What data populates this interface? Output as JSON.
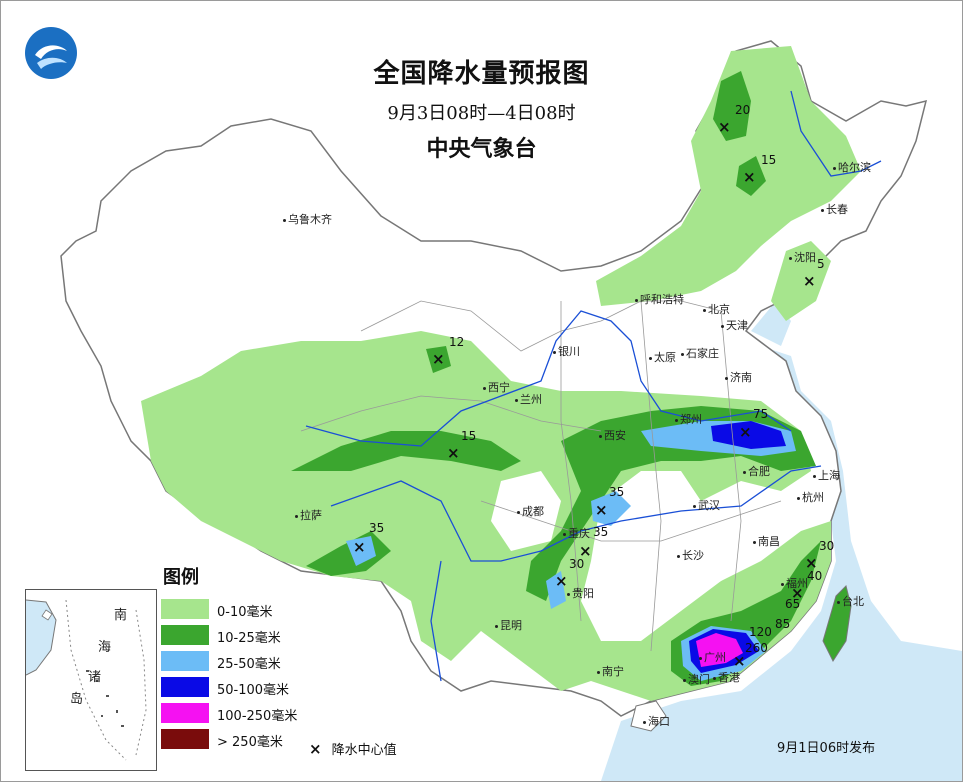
{
  "header": {
    "title": "全国降水量预报图",
    "period": "9月3日08时—4日08时",
    "issuer": "中央气象台"
  },
  "logo_icon": "cma-logo-icon",
  "cities": [
    {
      "name": "乌鲁木齐",
      "label": "乌鲁木齐"
    },
    {
      "name": "哈尔滨",
      "label": "哈尔滨"
    },
    {
      "name": "长春",
      "label": "长春"
    },
    {
      "name": "沈阳",
      "label": "沈阳"
    },
    {
      "name": "呼和浩特",
      "label": "呼和浩特"
    },
    {
      "name": "北京",
      "label": "北京"
    },
    {
      "name": "天津",
      "label": "天津"
    },
    {
      "name": "石家庄",
      "label": "石家庄"
    },
    {
      "name": "太原",
      "label": "太原"
    },
    {
      "name": "银川",
      "label": "银川"
    },
    {
      "name": "济南",
      "label": "济南"
    },
    {
      "name": "西宁",
      "label": "西宁"
    },
    {
      "name": "兰州",
      "label": "兰州"
    },
    {
      "name": "西安",
      "label": "西安"
    },
    {
      "name": "郑州",
      "label": "郑州"
    },
    {
      "name": "合肥",
      "label": "合肥"
    },
    {
      "name": "上海",
      "label": "上海"
    },
    {
      "name": "杭州",
      "label": "杭州"
    },
    {
      "name": "武汉",
      "label": "武汉"
    },
    {
      "name": "南昌",
      "label": "南昌"
    },
    {
      "name": "长沙",
      "label": "长沙"
    },
    {
      "name": "成都",
      "label": "成都"
    },
    {
      "name": "重庆",
      "label": "重庆"
    },
    {
      "name": "贵阳",
      "label": "贵阳"
    },
    {
      "name": "昆明",
      "label": "昆明"
    },
    {
      "name": "拉萨",
      "label": "拉萨"
    },
    {
      "name": "福州",
      "label": "福州"
    },
    {
      "name": "台北",
      "label": "台北"
    },
    {
      "name": "南宁",
      "label": "南宁"
    },
    {
      "name": "广州",
      "label": "广州"
    },
    {
      "name": "香港",
      "label": "香港"
    },
    {
      "name": "澳门",
      "label": "澳门"
    },
    {
      "name": "海口",
      "label": "海口"
    }
  ],
  "precip_centers": [
    "20",
    "15",
    "5",
    "12",
    "15",
    "75",
    "35",
    "35",
    "35",
    "30",
    "30",
    "40",
    "65",
    "85",
    "120",
    "260"
  ],
  "legend": {
    "title": "图例",
    "items": [
      {
        "label": "0-10毫米",
        "color": "#a6e58d"
      },
      {
        "label": "10-25毫米",
        "color": "#3ba62f"
      },
      {
        "label": "25-50毫米",
        "color": "#6cbcf6"
      },
      {
        "label": "50-100毫米",
        "color": "#0a0ae6"
      },
      {
        "label": "100-250毫米",
        "color": "#f511f2"
      },
      {
        "label": "> 250毫米",
        "color": "#7a0c0c"
      }
    ],
    "center_marker": "×",
    "center_label": "降水中心值"
  },
  "inset": {
    "labels": [
      "南",
      "海",
      "诸",
      "岛"
    ]
  },
  "issued": "9月1日06时发布"
}
